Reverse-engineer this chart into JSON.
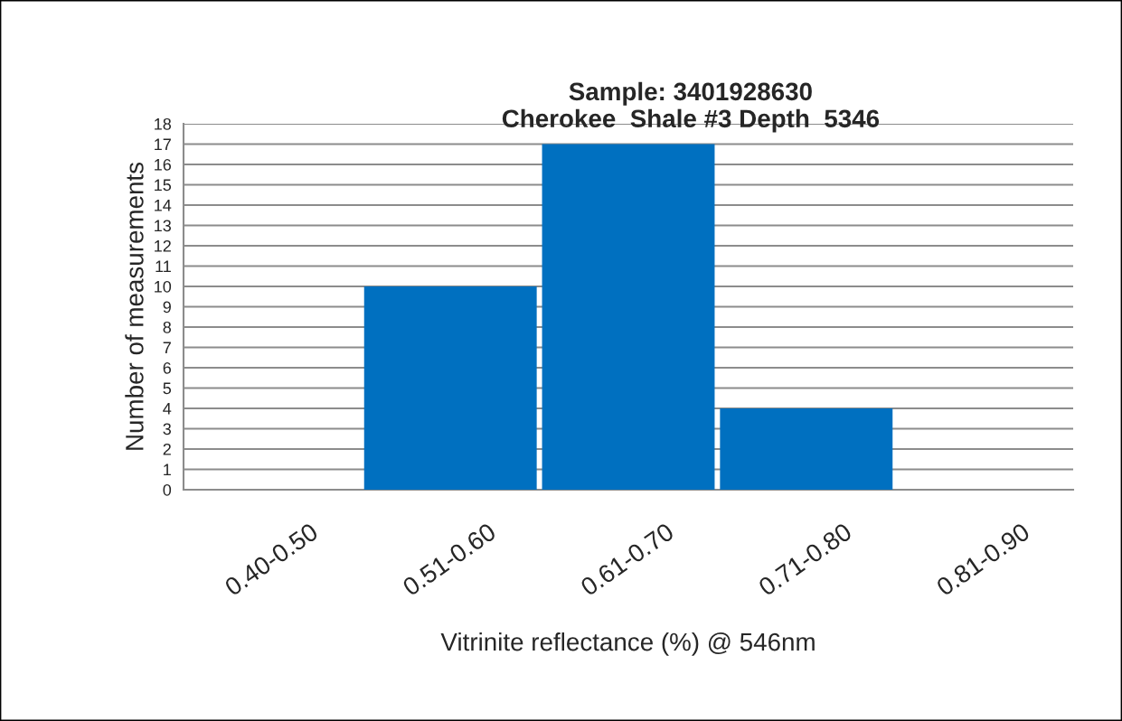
{
  "chart_data": {
    "type": "bar",
    "title": "Sample: 3401928630\nCherokee  Shale #3 Depth  5346",
    "xlabel": "Vitrinite reflectance (%) @ 546nm",
    "ylabel": "Number of measurements",
    "categories": [
      "0.40-0.50",
      "0.51-0.60",
      "0.61-0.70",
      "0.71-0.80",
      "0.81-0.90"
    ],
    "values": [
      0,
      10,
      17,
      4,
      0
    ],
    "color": "#0070c0",
    "ylim": [
      0,
      18
    ],
    "yticks": [
      0,
      1,
      2,
      3,
      4,
      5,
      6,
      7,
      8,
      9,
      10,
      11,
      12,
      13,
      14,
      15,
      16,
      17,
      18
    ],
    "grid": "y"
  }
}
